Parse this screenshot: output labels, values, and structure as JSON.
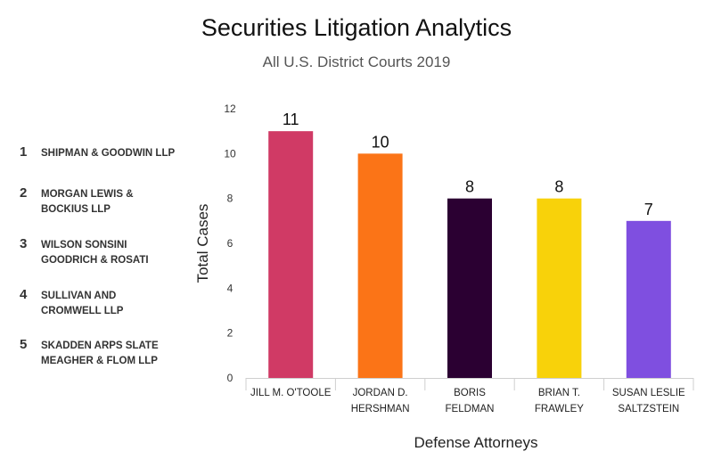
{
  "title": "Securities Litigation Analytics",
  "subtitle": "All U.S. District Courts 2019",
  "firms": [
    {
      "rank": "1",
      "name": "SHIPMAN & GOODWIN LLP"
    },
    {
      "rank": "2",
      "name": "MORGAN LEWIS & BOCKIUS LLP"
    },
    {
      "rank": "3",
      "name": "WILSON SONSINI GOODRICH & ROSATI"
    },
    {
      "rank": "4",
      "name": "SULLIVAN AND CROMWELL LLP"
    },
    {
      "rank": "5",
      "name": "SKADDEN ARPS SLATE MEAGHER & FLOM LLP"
    }
  ],
  "chart_data": {
    "type": "bar",
    "categories": [
      [
        "JILL M. O'TOOLE"
      ],
      [
        "JORDAN D.",
        "HERSHMAN"
      ],
      [
        "BORIS",
        "FELDMAN"
      ],
      [
        "BRIAN T.",
        "FRAWLEY"
      ],
      [
        "SUSAN LESLIE",
        "SALTZSTEIN"
      ]
    ],
    "values": [
      11,
      10,
      8,
      8,
      7
    ],
    "data_labels": [
      "11",
      "10",
      "8",
      "8",
      "7"
    ],
    "colors": [
      "#d03a65",
      "#fb7417",
      "#2b0032",
      "#f8d20a",
      "#7f4fe0"
    ],
    "xlabel": "Defense Attorneys",
    "ylabel": "Total Cases",
    "ylim": [
      0,
      12
    ],
    "yticks": [
      0,
      2,
      4,
      6,
      8,
      10,
      12
    ],
    "grid": false
  }
}
